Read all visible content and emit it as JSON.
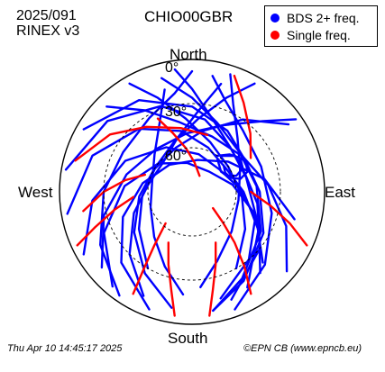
{
  "header": {
    "date": "2025/091",
    "format": "RINEX v3",
    "station": "CHIO00GBR"
  },
  "legend": [
    {
      "label": "BDS 2+ freq.",
      "color": "#0000ff"
    },
    {
      "label": "Single freq.",
      "color": "#ff0000"
    }
  ],
  "compass": {
    "north": "North",
    "south": "South",
    "west": "West",
    "east": "East"
  },
  "footer": {
    "timestamp": "Thu Apr 10 14:45:17 2025",
    "credit": "©EPN CB (www.epncb.eu)"
  },
  "chart_data": {
    "type": "polar-skyplot",
    "elevation_rings": [
      {
        "elevation": 0,
        "label": "0°"
      },
      {
        "elevation": 30,
        "label": "30°"
      },
      {
        "elevation": 60,
        "label": "60°"
      }
    ],
    "azimuth_range": [
      0,
      360
    ],
    "elevation_range": [
      0,
      90
    ],
    "series": [
      {
        "name": "BDS 2+ freq.",
        "color": "#0000ff",
        "tracks": [
          [
            [
              -60,
              5
            ],
            [
              -30,
              18
            ],
            [
              0,
              32
            ],
            [
              30,
              42
            ],
            [
              60,
              48
            ],
            [
              90,
              44
            ],
            [
              120,
              34
            ],
            [
              150,
              20
            ],
            [
              170,
              8
            ]
          ],
          [
            [
              -80,
              3
            ],
            [
              -50,
              15
            ],
            [
              -20,
              28
            ],
            [
              10,
              40
            ],
            [
              40,
              50
            ],
            [
              70,
              52
            ],
            [
              100,
              45
            ],
            [
              130,
              30
            ],
            [
              160,
              12
            ]
          ],
          [
            [
              -100,
              4
            ],
            [
              -70,
              18
            ],
            [
              -40,
              34
            ],
            [
              -10,
              48
            ],
            [
              20,
              58
            ],
            [
              55,
              62
            ],
            [
              90,
              55
            ],
            [
              120,
              38
            ],
            [
              150,
              15
            ]
          ],
          [
            [
              -120,
              5
            ],
            [
              -95,
              22
            ],
            [
              -65,
              40
            ],
            [
              -30,
              55
            ],
            [
              10,
              64
            ],
            [
              50,
              66
            ],
            [
              85,
              58
            ],
            [
              115,
              40
            ],
            [
              140,
              18
            ]
          ],
          [
            [
              -140,
              6
            ],
            [
              -115,
              24
            ],
            [
              -85,
              44
            ],
            [
              -50,
              60
            ],
            [
              -10,
              70
            ],
            [
              40,
              72
            ],
            [
              80,
              62
            ],
            [
              110,
              44
            ],
            [
              135,
              22
            ]
          ],
          [
            [
              -160,
              5
            ],
            [
              -135,
              22
            ],
            [
              -110,
              40
            ],
            [
              -80,
              56
            ],
            [
              -40,
              66
            ],
            [
              10,
              68
            ],
            [
              50,
              58
            ],
            [
              80,
              40
            ],
            [
              105,
              18
            ]
          ],
          [
            [
              -170,
              10
            ],
            [
              -150,
              26
            ],
            [
              -125,
              42
            ],
            [
              -95,
              54
            ],
            [
              -60,
              60
            ],
            [
              -20,
              58
            ],
            [
              10,
              48
            ],
            [
              35,
              30
            ],
            [
              55,
              10
            ]
          ],
          [
            [
              170,
              8
            ],
            [
              150,
              22
            ],
            [
              120,
              36
            ],
            [
              85,
              46
            ],
            [
              50,
              48
            ],
            [
              20,
              40
            ],
            [
              0,
              26
            ],
            [
              -15,
              10
            ]
          ],
          [
            [
              165,
              15
            ],
            [
              140,
              30
            ],
            [
              110,
              44
            ],
            [
              75,
              52
            ],
            [
              40,
              50
            ],
            [
              15,
              38
            ],
            [
              0,
              20
            ],
            [
              -8,
              6
            ]
          ],
          [
            [
              160,
              5
            ],
            [
              135,
              20
            ],
            [
              105,
              34
            ],
            [
              70,
              40
            ],
            [
              40,
              36
            ],
            [
              20,
              24
            ],
            [
              10,
              10
            ]
          ],
          [
            [
              -155,
              12
            ],
            [
              -135,
              30
            ],
            [
              -110,
              48
            ],
            [
              -80,
              60
            ],
            [
              -45,
              62
            ],
            [
              -15,
              52
            ],
            [
              5,
              34
            ],
            [
              15,
              14
            ]
          ],
          [
            [
              -145,
              4
            ],
            [
              -120,
              18
            ],
            [
              -90,
              30
            ],
            [
              -60,
              36
            ],
            [
              -30,
              32
            ],
            [
              -10,
              22
            ],
            [
              0,
              8
            ]
          ],
          [
            [
              -175,
              20
            ],
            [
              -160,
              36
            ],
            [
              -140,
              50
            ],
            [
              -110,
              60
            ],
            [
              -75,
              62
            ],
            [
              -45,
              54
            ],
            [
              -25,
              38
            ],
            [
              -15,
              18
            ]
          ],
          [
            [
              175,
              25
            ],
            [
              160,
              40
            ],
            [
              135,
              52
            ],
            [
              100,
              58
            ],
            [
              65,
              54
            ],
            [
              40,
              42
            ],
            [
              25,
              24
            ],
            [
              18,
              6
            ]
          ],
          [
            [
              -130,
              10
            ],
            [
              -105,
              28
            ],
            [
              -75,
              44
            ],
            [
              -40,
              52
            ],
            [
              -5,
              50
            ],
            [
              25,
              40
            ],
            [
              45,
              22
            ],
            [
              55,
              4
            ]
          ],
          [
            [
              130,
              6
            ],
            [
              110,
              22
            ],
            [
              85,
              38
            ],
            [
              55,
              48
            ],
            [
              20,
              50
            ],
            [
              -10,
              42
            ],
            [
              -30,
              26
            ],
            [
              -45,
              8
            ]
          ],
          [
            [
              150,
              30
            ],
            [
              125,
              46
            ],
            [
              95,
              56
            ],
            [
              55,
              60
            ],
            [
              20,
              54
            ],
            [
              -5,
              40
            ],
            [
              -20,
              22
            ],
            [
              -30,
              5
            ]
          ],
          [
            [
              -150,
              30
            ],
            [
              -125,
              46
            ],
            [
              -95,
              56
            ],
            [
              -55,
              60
            ],
            [
              -20,
              54
            ],
            [
              5,
              40
            ],
            [
              20,
              22
            ],
            [
              30,
              5
            ]
          ],
          [
            [
              35,
              60
            ],
            [
              45,
              54
            ],
            [
              55,
              50
            ],
            [
              65,
              52
            ],
            [
              70,
              58
            ],
            [
              65,
              64
            ],
            [
              55,
              66
            ],
            [
              45,
              64
            ],
            [
              38,
              62
            ]
          ],
          [
            [
              40,
              58
            ],
            [
              50,
              52
            ],
            [
              60,
              48
            ],
            [
              70,
              50
            ],
            [
              75,
              56
            ],
            [
              70,
              62
            ],
            [
              60,
              64
            ],
            [
              50,
              62
            ]
          ]
        ]
      },
      {
        "name": "Single freq.",
        "color": "#ff0000",
        "tracks": [
          [
            [
              -75,
              8
            ],
            [
              -55,
              22
            ],
            [
              -35,
              36
            ],
            [
              -10,
              46
            ],
            [
              15,
              50
            ]
          ],
          [
            [
              -100,
              15
            ],
            [
              -90,
              30
            ],
            [
              -80,
              44
            ],
            [
              -70,
              56
            ]
          ],
          [
            [
              150,
              10
            ],
            [
              145,
              28
            ],
            [
              140,
              45
            ],
            [
              135,
              60
            ],
            [
              128,
              72
            ]
          ],
          [
            [
              -150,
              10
            ],
            [
              -148,
              28
            ],
            [
              -145,
              45
            ],
            [
              -140,
              62
            ]
          ],
          [
            [
              115,
              4
            ],
            [
              108,
              20
            ],
            [
              100,
              36
            ],
            [
              90,
              50
            ]
          ],
          [
            [
              -115,
              4
            ],
            [
              -110,
              20
            ],
            [
              -103,
              36
            ],
            [
              -95,
              50
            ]
          ],
          [
            [
              172,
              5
            ],
            [
              168,
              22
            ],
            [
              162,
              38
            ],
            [
              155,
              52
            ]
          ],
          [
            [
              -172,
              5
            ],
            [
              -168,
              22
            ],
            [
              -162,
              38
            ],
            [
              -155,
              52
            ]
          ],
          [
            [
              20,
              6
            ],
            [
              30,
              20
            ],
            [
              45,
              34
            ],
            [
              60,
              44
            ]
          ],
          [
            [
              -25,
              35
            ],
            [
              -18,
              48
            ],
            [
              -8,
              60
            ],
            [
              5,
              70
            ],
            [
              25,
              78
            ]
          ]
        ]
      }
    ]
  }
}
